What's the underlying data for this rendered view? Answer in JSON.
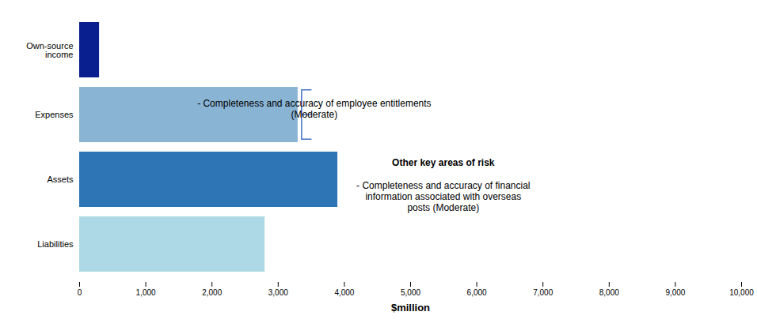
{
  "chart_data": {
    "type": "bar",
    "orientation": "horizontal",
    "categories": [
      "Liabilities",
      "Assets",
      "Expenses",
      "Own-source\nincome"
    ],
    "values": [
      2800,
      3900,
      3300,
      300
    ],
    "colors": [
      "#add8e6",
      "#2e75b6",
      "#8ab4d4",
      "#0a1f8f"
    ],
    "xlabel": "$million",
    "xlim": [
      0,
      10000
    ],
    "xticks": [
      0,
      {
        "value": 1000,
        "label": "1,000"
      },
      {
        "value": 2000,
        "label": "2,000"
      },
      {
        "value": 3000,
        "label": "3,000"
      },
      {
        "value": 4000,
        "label": "4,000"
      },
      {
        "value": 5000,
        "label": "5,000"
      },
      {
        "value": 6000,
        "label": "6,000"
      },
      {
        "value": 7000,
        "label": "7,000"
      },
      {
        "value": 8000,
        "label": "8,000"
      },
      {
        "value": 9000,
        "label": "9,000"
      },
      {
        "value": 10000,
        "label": "10,000"
      }
    ],
    "grid": false,
    "annotations": [
      {
        "category": "Expenses",
        "color": "#4472c4",
        "text": "- Completeness and accuracy of employee entitlements\n(Moderate)"
      },
      {
        "title": "Other key areas of risk",
        "text": "- Completeness and accuracy of financial\ninformation associated with overseas\nposts (Moderate)"
      }
    ],
    "background_color": "#ffffff"
  }
}
